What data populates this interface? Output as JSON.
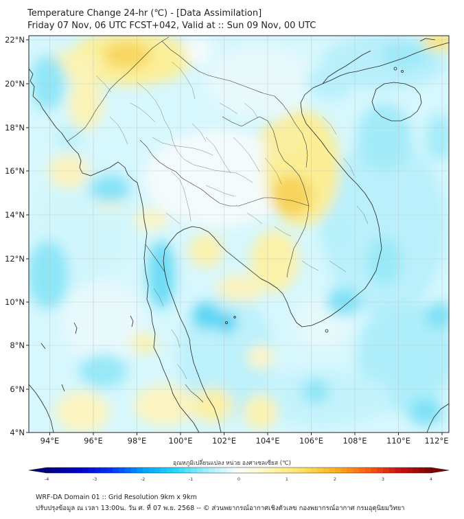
{
  "title_line1": "Temperature Change 24-hr (℃) - [Data Assimilation]",
  "title_line2": "Friday 07 Nov, 06 UTC FCST+042, Valid at :: Sun 09 Nov, 00 UTC",
  "lat_labels": [
    "22°N",
    "20°N",
    "18°N",
    "16°N",
    "14°N",
    "12°N",
    "10°N",
    "8°N",
    "6°N",
    "4°N"
  ],
  "lon_labels": [
    "94°E",
    "96°E",
    "98°E",
    "100°E",
    "102°E",
    "104°E",
    "106°E",
    "108°E",
    "110°E",
    "112°E"
  ],
  "colorbar": {
    "label": "อุณหภูมิเปลี่ยนแปลง หน่วย องศาเซลเซียส (℃)",
    "ticks": [
      "-4",
      "-3",
      "-2",
      "-1",
      "0",
      "1",
      "2",
      "3",
      "4"
    ],
    "min": -4,
    "max": 4,
    "colors": [
      "#00007f",
      "#0000c8",
      "#0030ff",
      "#00a0ff",
      "#20d8ff",
      "#a0f0ff",
      "#ffffff",
      "#fff7b0",
      "#ffe060",
      "#ffb020",
      "#ff6010",
      "#d01010",
      "#7f0000"
    ]
  },
  "footer_line1": "WRF-DA Domain 01 :: Grid Resolution 9km x 9km",
  "footer_line2": "ปรับปรุงข้อมูล ณ เวลา 13:00น. วัน ศ. ที่ 07 พ.ย. 2568 -- © ส่วนพยากรณ์อากาศเชิงตัวเลข กองพยากรณ์อากาศ กรมอุตุนิยมวิทยา"
}
